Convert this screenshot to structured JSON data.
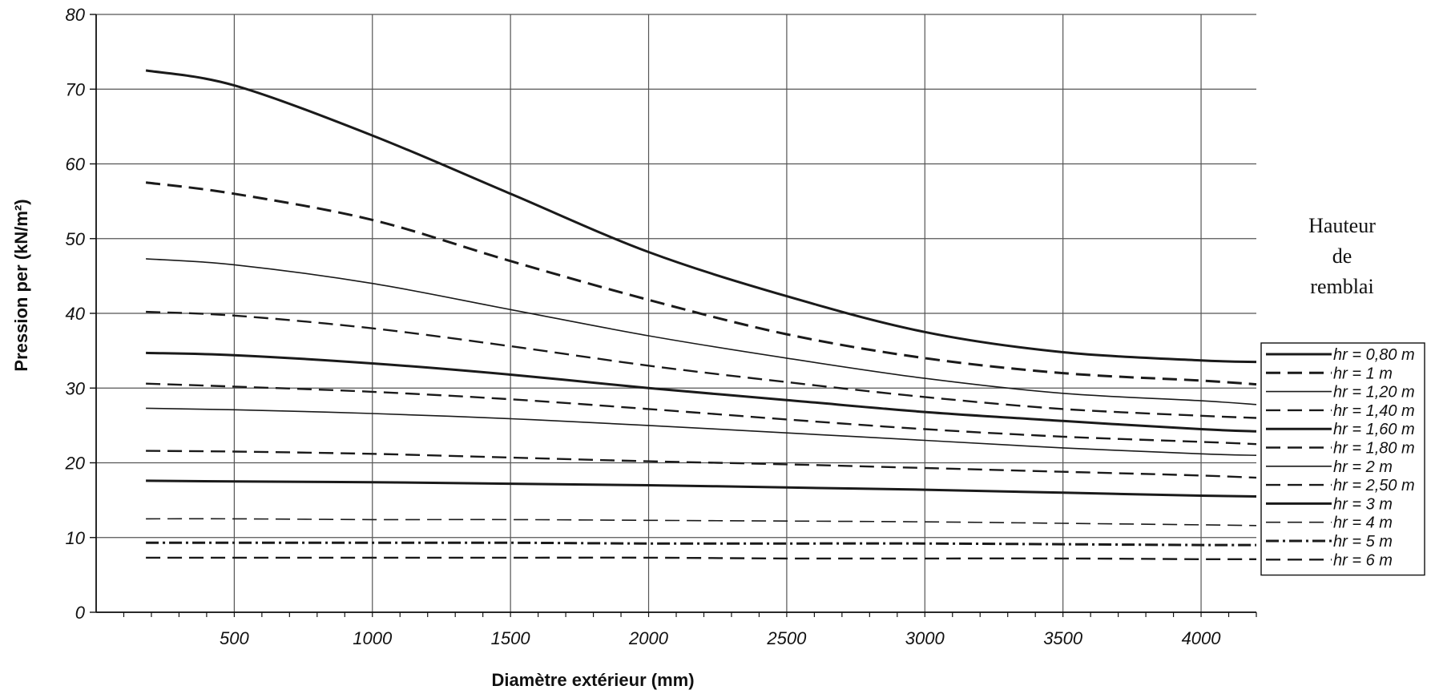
{
  "chart_data": {
    "type": "line",
    "title": "",
    "xlabel": "Diamètre extérieur (mm)",
    "ylabel": "Pression per  (kN/m²)",
    "xlim": [
      0,
      4200
    ],
    "ylim": [
      0,
      80
    ],
    "x_ticks": [
      500,
      1000,
      1500,
      2000,
      2500,
      3000,
      3500,
      4000
    ],
    "y_ticks": [
      0,
      10,
      20,
      30,
      40,
      50,
      60,
      70,
      80
    ],
    "x_tick_labels": [
      "500",
      "1000",
      "1500",
      "2000",
      "2500",
      "3000",
      "3500",
      "4000"
    ],
    "y_tick_labels": [
      "0",
      "10",
      "20",
      "30",
      "40",
      "50",
      "60",
      "70",
      "80"
    ],
    "grid": true,
    "legend_position": "right",
    "legend_title_lines": [
      "Hauteur",
      "de",
      "remblai"
    ],
    "x": [
      180,
      500,
      1000,
      1500,
      2000,
      2500,
      3000,
      3500,
      4000,
      4200
    ],
    "series": [
      {
        "name": "hr = 0,80 m",
        "style": "solid",
        "weight": "heavy",
        "values": [
          72.5,
          70.5,
          63.8,
          56.0,
          48.2,
          42.3,
          37.5,
          34.8,
          33.7,
          33.5
        ]
      },
      {
        "name": "hr = 1 m",
        "style": "dashed",
        "weight": "heavy",
        "values": [
          57.5,
          56.0,
          52.5,
          47.0,
          41.8,
          37.2,
          34.0,
          32.0,
          31.0,
          30.5
        ]
      },
      {
        "name": "hr = 1,20 m",
        "style": "solid",
        "weight": "light",
        "values": [
          47.3,
          46.5,
          44.0,
          40.5,
          37.0,
          34.0,
          31.3,
          29.3,
          28.3,
          27.8
        ]
      },
      {
        "name": "hr = 1,40 m",
        "style": "dashed",
        "weight": "medium",
        "values": [
          40.2,
          39.7,
          38.0,
          35.6,
          33.0,
          30.8,
          28.8,
          27.2,
          26.3,
          26.0
        ]
      },
      {
        "name": "hr = 1,60 m",
        "style": "solid",
        "weight": "heavy",
        "values": [
          34.7,
          34.4,
          33.3,
          31.8,
          30.0,
          28.4,
          26.8,
          25.6,
          24.5,
          24.2
        ]
      },
      {
        "name": "hr = 1,80 m",
        "style": "dashed",
        "weight": "medium",
        "values": [
          30.6,
          30.2,
          29.5,
          28.5,
          27.2,
          25.8,
          24.5,
          23.5,
          22.8,
          22.5
        ]
      },
      {
        "name": "hr = 2 m",
        "style": "solid",
        "weight": "light",
        "values": [
          27.3,
          27.1,
          26.6,
          25.9,
          25.0,
          24.0,
          23.0,
          22.0,
          21.2,
          21.0
        ]
      },
      {
        "name": "hr = 2,50 m",
        "style": "dashed",
        "weight": "medium",
        "values": [
          21.6,
          21.5,
          21.2,
          20.7,
          20.2,
          19.8,
          19.3,
          18.8,
          18.3,
          18.0
        ]
      },
      {
        "name": "hr = 3 m",
        "style": "solid",
        "weight": "heavy",
        "values": [
          17.6,
          17.5,
          17.4,
          17.2,
          17.0,
          16.7,
          16.4,
          16.0,
          15.6,
          15.5
        ]
      },
      {
        "name": "hr = 4 m",
        "style": "dashed",
        "weight": "light",
        "values": [
          12.5,
          12.5,
          12.4,
          12.4,
          12.3,
          12.2,
          12.1,
          11.9,
          11.7,
          11.6
        ]
      },
      {
        "name": "hr = 5 m",
        "style": "dashdot",
        "weight": "heavy",
        "values": [
          9.3,
          9.3,
          9.3,
          9.3,
          9.2,
          9.2,
          9.2,
          9.1,
          9.0,
          9.0
        ]
      },
      {
        "name": "hr = 6 m",
        "style": "dashed",
        "weight": "medium",
        "values": [
          7.3,
          7.3,
          7.3,
          7.3,
          7.3,
          7.2,
          7.2,
          7.2,
          7.1,
          7.1
        ]
      }
    ]
  }
}
